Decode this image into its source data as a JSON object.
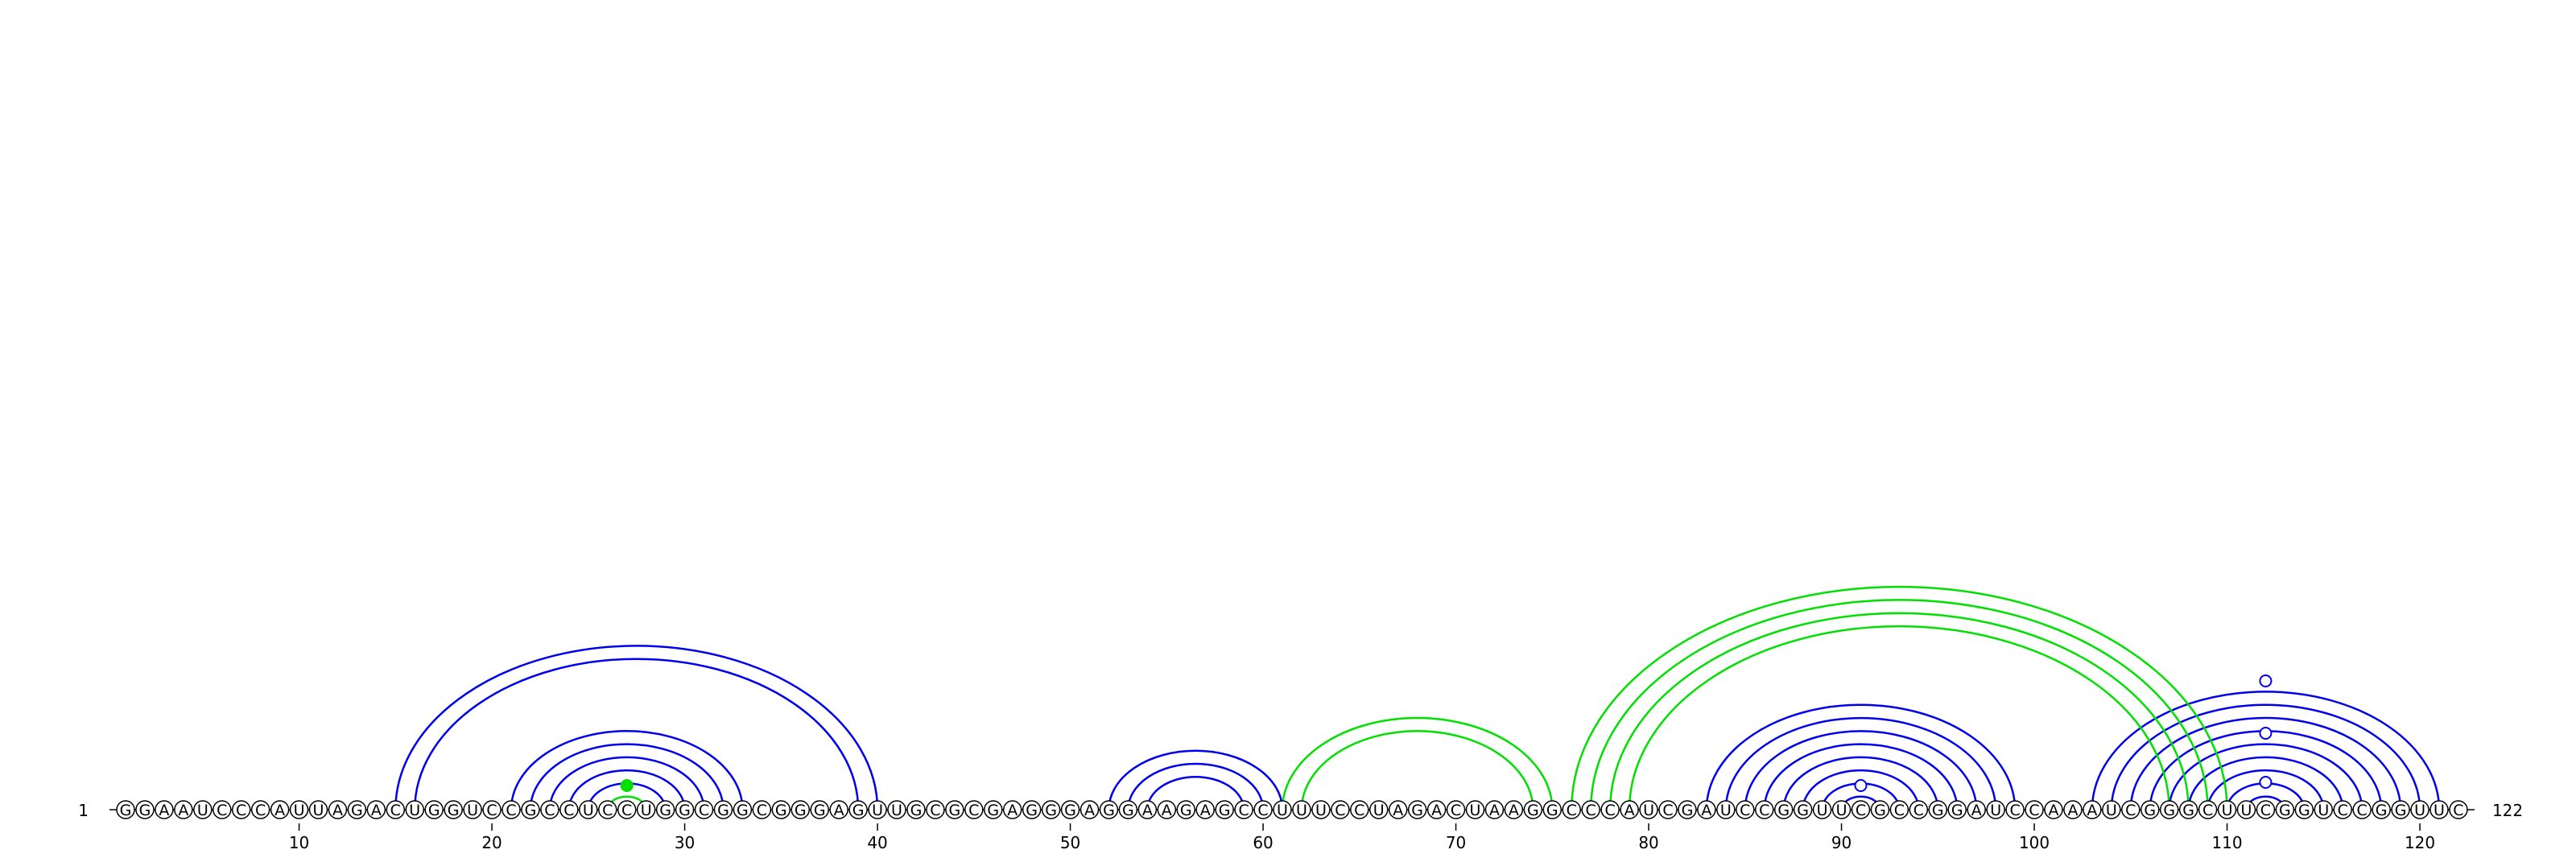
{
  "diagram": {
    "sequence": "GGAAUCCCAUUAGACUGGUCCGCCUCCUGGCGGCGGGAGUUGCGCGAGGGAGGAAGAGCCUUUCCUAGACUAAGGCCCAUCGAUCCGGUUCGCCGGAUCCAAAUCGGGCUUCGGUCCGGUUC",
    "start_label": "1",
    "end_label": "122",
    "ticks": [
      10,
      20,
      30,
      40,
      50,
      60,
      70,
      80,
      90,
      100,
      110,
      120
    ],
    "colors": {
      "primary_arc": "#0000ee",
      "secondary_arc": "#00e000",
      "nucleotide_stroke": "#000000",
      "nucleotide_fill": "#ffffff"
    },
    "blue_pairs": [
      [
        15,
        40
      ],
      [
        16,
        39
      ],
      [
        21,
        33
      ],
      [
        22,
        32
      ],
      [
        23,
        31
      ],
      [
        24,
        30
      ],
      [
        25,
        29
      ],
      [
        52,
        61
      ],
      [
        53,
        60
      ],
      [
        54,
        59
      ],
      [
        83,
        99
      ],
      [
        84,
        98
      ],
      [
        85,
        97
      ],
      [
        86,
        96
      ],
      [
        87,
        95
      ],
      [
        88,
        94
      ],
      [
        89,
        93
      ],
      [
        90,
        92
      ],
      [
        103,
        121
      ],
      [
        104,
        120
      ],
      [
        105,
        119
      ],
      [
        106,
        118
      ],
      [
        107,
        117
      ],
      [
        108,
        116
      ],
      [
        109,
        115
      ],
      [
        110,
        114
      ],
      [
        111,
        113
      ]
    ],
    "green_pairs": [
      [
        26,
        28
      ],
      [
        61,
        75
      ],
      [
        62,
        74
      ],
      [
        76,
        110
      ],
      [
        77,
        109
      ],
      [
        78,
        108
      ],
      [
        79,
        107
      ]
    ],
    "blue_dots": [
      91,
      112,
      112,
      112
    ],
    "green_dots": [
      27
    ]
  }
}
